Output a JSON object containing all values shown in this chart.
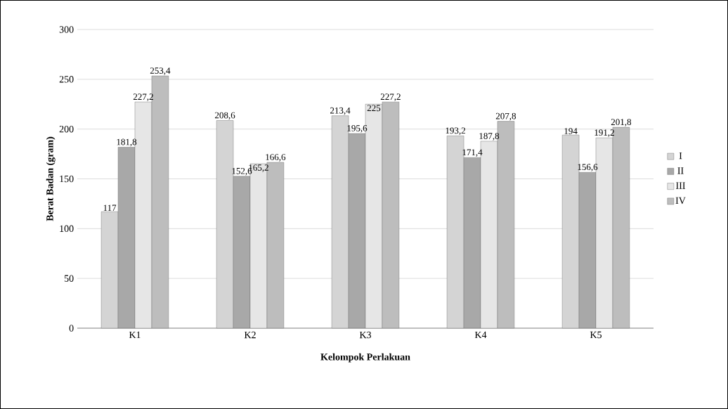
{
  "chart_data": {
    "type": "bar",
    "xlabel": "Kelompok Perlakuan",
    "ylabel": "Berat Badan (gram)",
    "categories": [
      "K1",
      "K2",
      "K3",
      "K4",
      "K5"
    ],
    "series": [
      {
        "name": "I",
        "color": "#d4d4d4",
        "values": [
          117,
          208.6,
          213.4,
          193.2,
          194
        ],
        "value_labels": [
          "117",
          "208,6",
          "213,4",
          "193,2",
          "194"
        ]
      },
      {
        "name": "II",
        "color": "#a8a8a8",
        "values": [
          181.8,
          152.6,
          195.6,
          171.4,
          156.6
        ],
        "value_labels": [
          "181,8",
          "152,6",
          "195,6",
          "171,4",
          "156,6"
        ]
      },
      {
        "name": "III",
        "color": "#e6e6e6",
        "values": [
          227.2,
          165.2,
          225,
          187.8,
          191.2
        ],
        "value_labels": [
          "227,2",
          "165,2",
          "225",
          "187,8",
          "191,2"
        ]
      },
      {
        "name": "IV",
        "color": "#bdbdbd",
        "values": [
          253.4,
          166.6,
          227.2,
          207.8,
          201.8
        ],
        "value_labels": [
          "253,4",
          "166,6",
          "227,2",
          "207,8",
          "201,8"
        ]
      }
    ],
    "ylim": [
      0,
      300
    ],
    "yticks": [
      0,
      50,
      100,
      150,
      200,
      250,
      300
    ],
    "grid": "y",
    "legend": "right"
  }
}
